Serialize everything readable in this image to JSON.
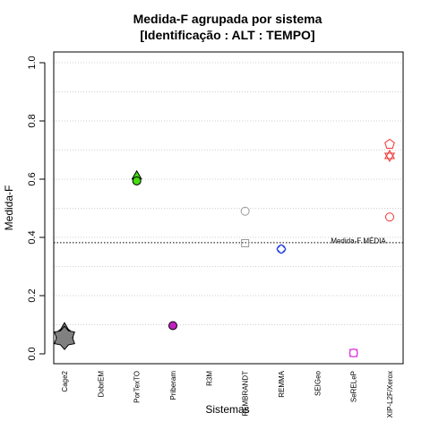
{
  "chart_data": {
    "type": "scatter",
    "title": "Medida-F agrupada por sistema",
    "subtitle": "[Identificação : ALT : TEMPO]",
    "xlabel": "Sistemas",
    "ylabel": "Medida-F",
    "ylim": [
      0,
      1.0
    ],
    "yticks": [
      "0.0",
      "0.2",
      "0.4",
      "0.6",
      "0.8",
      "1.0"
    ],
    "grid": true,
    "categories": [
      "Cage2",
      "DobrEM",
      "PorTexTO",
      "Priberam",
      "R3M",
      "REMBRANDT",
      "REMMA",
      "SEIGeo",
      "SeRELeP",
      "XIP-L2F/Xerox"
    ],
    "reference_line": {
      "value": 0.382,
      "label": "Medida-F MÉDIA"
    },
    "points": [
      {
        "category": "Cage2",
        "y": 0.06,
        "shape": "circle",
        "size": "large",
        "color": "#808080",
        "stroke": "#000000"
      },
      {
        "category": "Cage2",
        "y": 0.07,
        "shape": "triangle",
        "size": "large",
        "color": "#808080",
        "stroke": "#000000"
      },
      {
        "category": "Cage2",
        "y": 0.055,
        "shape": "star",
        "size": "large",
        "color": "#808080",
        "stroke": "#000000"
      },
      {
        "category": "PorTexTO",
        "y": 0.61,
        "shape": "triangle",
        "size": "normal",
        "color": "#44dd11",
        "stroke": "#000000"
      },
      {
        "category": "PorTexTO",
        "y": 0.594,
        "shape": "circle",
        "size": "normal",
        "color": "#44dd11",
        "stroke": "#000000"
      },
      {
        "category": "Priberam",
        "y": 0.097,
        "shape": "circle",
        "size": "normal",
        "color": "#c020c0",
        "stroke": "#000000"
      },
      {
        "category": "REMBRANDT",
        "y": 0.49,
        "shape": "circle-open",
        "size": "normal",
        "color": "#999999",
        "stroke": "#999999"
      },
      {
        "category": "REMBRANDT",
        "y": 0.38,
        "shape": "square-open",
        "size": "normal",
        "color": "#999999",
        "stroke": "#999999"
      },
      {
        "category": "REMMA",
        "y": 0.36,
        "shape": "circle-open",
        "size": "normal",
        "color": "#2244dd",
        "stroke": "#2244dd"
      },
      {
        "category": "REMMA",
        "y": 0.36,
        "shape": "diamond-open",
        "size": "normal",
        "color": "#2244dd",
        "stroke": "#2244dd"
      },
      {
        "category": "SeRELeP",
        "y": 0.003,
        "shape": "circle-open",
        "size": "normal",
        "color": "#dd33dd",
        "stroke": "#dd33dd"
      },
      {
        "category": "SeRELeP",
        "y": 0.003,
        "shape": "square-open",
        "size": "normal",
        "color": "#dd33dd",
        "stroke": "#dd33dd"
      },
      {
        "category": "XIP-L2F/Xerox",
        "y": 0.72,
        "shape": "pentagon-open",
        "size": "normal",
        "color": "#ee3333",
        "stroke": "#ee3333"
      },
      {
        "category": "XIP-L2F/Xerox",
        "y": 0.68,
        "shape": "triangle-open",
        "size": "normal",
        "color": "#ee3333",
        "stroke": "#ee3333"
      },
      {
        "category": "XIP-L2F/Xerox",
        "y": 0.68,
        "shape": "triangle-down-open",
        "size": "normal",
        "color": "#ee3333",
        "stroke": "#ee3333"
      },
      {
        "category": "XIP-L2F/Xerox",
        "y": 0.47,
        "shape": "circle-open",
        "size": "normal",
        "color": "#ee3333",
        "stroke": "#ee3333"
      }
    ]
  }
}
